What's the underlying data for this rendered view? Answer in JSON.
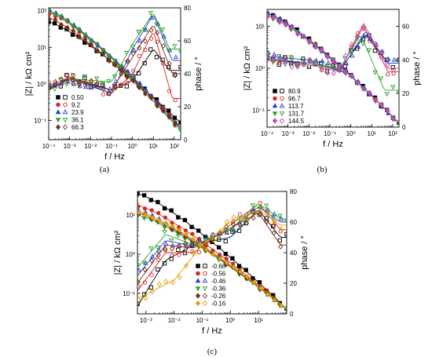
{
  "chart_data": [
    {
      "type": "scatter",
      "caption": "(a)",
      "xlabel": "f / Hz",
      "ylabel_left": "|Z| / kΩ cm²",
      "ylabel_right": "phase / °",
      "x_scale": "log",
      "y_left_scale": "log",
      "xlim": [
        0.0001,
        200
      ],
      "ylim_left": [
        0.03,
        120
      ],
      "ylim_right": [
        0,
        80
      ],
      "x_ticks": [
        "10⁻⁴",
        "10⁻³",
        "10⁻²",
        "10⁻¹",
        "10⁰",
        "10¹",
        "10²"
      ],
      "y_left_ticks": [
        "10⁻¹",
        "10⁰",
        "10¹",
        "10²"
      ],
      "y_right_ticks": [
        "0",
        "20",
        "40",
        "60",
        "80"
      ],
      "legend_position": "lower-left",
      "legend": [
        {
          "label": "0.50",
          "color": "#000000",
          "marker": "square"
        },
        {
          "label": "9.2",
          "color": "#d62728",
          "marker": "circle"
        },
        {
          "label": "23.9",
          "color": "#1f3fd6",
          "marker": "triangle-up"
        },
        {
          "label": "36.1",
          "color": "#2ca02c",
          "marker": "triangle-down"
        },
        {
          "label": "66.3",
          "color": "#7b2d12",
          "marker": "diamond"
        }
      ],
      "series": [
        {
          "label": "0.50",
          "logZ": [
            [
              0.0001,
              1.7
            ],
            [
              100,
              -0.9
            ]
          ],
          "phase": [
            [
              0.0001,
              30
            ],
            [
              0.001,
              38
            ],
            [
              0.1,
              30
            ],
            [
              1,
              36
            ],
            [
              10,
              55
            ],
            [
              60,
              42
            ]
          ]
        },
        {
          "label": "9.2",
          "logZ": [
            [
              0.0001,
              1.95
            ],
            [
              100,
              -1.0
            ]
          ],
          "phase": [
            [
              0.0001,
              32
            ],
            [
              0.001,
              38
            ],
            [
              0.1,
              28
            ],
            [
              1,
              40
            ],
            [
              10,
              66
            ],
            [
              80,
              25
            ]
          ]
        },
        {
          "label": "23.9",
          "logZ": [
            [
              0.0001,
              2.0
            ],
            [
              100,
              -1.0
            ]
          ],
          "phase": [
            [
              0.0001,
              30
            ],
            [
              0.001,
              37
            ],
            [
              0.1,
              28
            ],
            [
              1,
              55
            ],
            [
              10,
              76
            ],
            [
              80,
              48
            ]
          ]
        },
        {
          "label": "36.1",
          "logZ": [
            [
              0.0001,
              2.0
            ],
            [
              100,
              -1.1
            ]
          ],
          "phase": [
            [
              0.0001,
              31
            ],
            [
              0.001,
              37
            ],
            [
              0.1,
              35
            ],
            [
              1,
              58
            ],
            [
              10,
              77
            ],
            [
              60,
              55
            ]
          ]
        },
        {
          "label": "66.3",
          "logZ": [
            [
              0.0001,
              1.8
            ],
            [
              100,
              -1.05
            ]
          ],
          "phase": [
            [
              0.0001,
              31
            ],
            [
              0.001,
              37
            ],
            [
              0.1,
              30
            ],
            [
              1,
              50
            ],
            [
              10,
              70
            ],
            [
              80,
              40
            ]
          ]
        }
      ]
    },
    {
      "type": "scatter",
      "caption": "(b)",
      "xlabel": "f / Hz",
      "ylabel_left": "|Z| / kΩ cm²",
      "ylabel_right": "phase / °",
      "x_scale": "log",
      "y_left_scale": "log",
      "xlim": [
        0.0001,
        200
      ],
      "ylim_left": [
        0.04,
        25
      ],
      "ylim_right": [
        0,
        70
      ],
      "x_ticks": [
        "10⁻⁴",
        "10⁻³",
        "10⁻²",
        "10⁻¹",
        "10⁰",
        "10¹",
        "10²"
      ],
      "y_left_ticks": [
        "10⁻¹",
        "10⁰",
        "10¹"
      ],
      "y_right_ticks": [
        "0",
        "20",
        "40",
        "60"
      ],
      "legend_position": "lower-left",
      "legend": [
        {
          "label": "80.9",
          "color": "#000000",
          "marker": "square"
        },
        {
          "label": "96.7",
          "color": "#d62728",
          "marker": "circle"
        },
        {
          "label": "113.7",
          "color": "#1f3fd6",
          "marker": "triangle-up"
        },
        {
          "label": "131.7",
          "color": "#2ca02c",
          "marker": "triangle-down"
        },
        {
          "label": "144.5",
          "color": "#c04ab0",
          "marker": "diamond"
        }
      ],
      "series": [
        {
          "label": "80.9",
          "logZ": [
            [
              0.0001,
              1.3
            ],
            [
              100,
              -1.15
            ]
          ],
          "phase": [
            [
              0.0001,
              40
            ],
            [
              0.01,
              38
            ],
            [
              0.3,
              34
            ],
            [
              5,
              55
            ],
            [
              60,
              38
            ]
          ]
        },
        {
          "label": "96.7",
          "logZ": [
            [
              0.0001,
              1.3
            ],
            [
              100,
              -1.15
            ]
          ],
          "phase": [
            [
              0.0001,
              41
            ],
            [
              0.01,
              38
            ],
            [
              0.3,
              34
            ],
            [
              4,
              60
            ],
            [
              60,
              33
            ]
          ]
        },
        {
          "label": "113.7",
          "logZ": [
            [
              0.0001,
              1.3
            ],
            [
              100,
              -1.15
            ]
          ],
          "phase": [
            [
              0.0001,
              42
            ],
            [
              0.01,
              40
            ],
            [
              0.3,
              33
            ],
            [
              5,
              57
            ],
            [
              60,
              38
            ]
          ]
        },
        {
          "label": "131.7",
          "logZ": [
            [
              0.0001,
              1.25
            ],
            [
              100,
              -1.15
            ]
          ],
          "phase": [
            [
              0.0001,
              41
            ],
            [
              0.01,
              38
            ],
            [
              0.3,
              35
            ],
            [
              3,
              55
            ],
            [
              40,
              22
            ]
          ]
        },
        {
          "label": "144.5",
          "logZ": [
            [
              0.0001,
              1.25
            ],
            [
              100,
              -1.15
            ]
          ],
          "phase": [
            [
              0.0001,
              40
            ],
            [
              0.01,
              37
            ],
            [
              0.3,
              33
            ],
            [
              4,
              62
            ],
            [
              60,
              35
            ]
          ]
        }
      ]
    },
    {
      "type": "scatter",
      "caption": "(c)",
      "xlabel": "f / Hz",
      "ylabel_left": "|Z| / kΩ cm²",
      "ylabel_right": "phase / °",
      "x_scale": "log",
      "y_left_scale": "log",
      "xlim": [
        0.0005,
        100
      ],
      "ylim_left": [
        0.03,
        40
      ],
      "ylim_right": [
        0,
        80
      ],
      "x_ticks": [
        "10⁻³",
        "10⁻²",
        "10⁻¹",
        "10⁰",
        "10¹"
      ],
      "y_left_ticks": [
        "10⁻¹",
        "10⁰",
        "10¹"
      ],
      "y_right_ticks": [
        "0",
        "20",
        "40",
        "60",
        "80"
      ],
      "legend_position": "lower-center",
      "legend": [
        {
          "label": "-0.66",
          "color": "#000000",
          "marker": "square"
        },
        {
          "label": "-0.56",
          "color": "#d62728",
          "marker": "circle"
        },
        {
          "label": "-0.46",
          "color": "#1f3fd6",
          "marker": "triangle-up"
        },
        {
          "label": "-0.36",
          "color": "#2ca02c",
          "marker": "triangle-down"
        },
        {
          "label": "-0.26",
          "color": "#7b2d12",
          "marker": "diamond"
        },
        {
          "label": "-0.16",
          "color": "#e0a000",
          "marker": "diamond"
        }
      ],
      "series": [
        {
          "label": "-0.66",
          "logZ": [
            [
              0.0005,
              1.55
            ],
            [
              100,
              -1.4
            ]
          ],
          "phase": [
            [
              0.0005,
              5
            ],
            [
              0.005,
              35
            ],
            [
              0.05,
              45
            ],
            [
              1,
              50
            ],
            [
              10,
              68
            ],
            [
              60,
              50
            ]
          ]
        },
        {
          "label": "-0.56",
          "logZ": [
            [
              0.0005,
              1.25
            ],
            [
              100,
              -1.4
            ]
          ],
          "phase": [
            [
              0.0005,
              15
            ],
            [
              0.005,
              40
            ],
            [
              0.05,
              40
            ],
            [
              1,
              58
            ],
            [
              10,
              72
            ],
            [
              60,
              55
            ]
          ]
        },
        {
          "label": "-0.46",
          "logZ": [
            [
              0.0005,
              1.1
            ],
            [
              100,
              -1.4
            ]
          ],
          "phase": [
            [
              0.0005,
              25
            ],
            [
              0.005,
              48
            ],
            [
              0.05,
              44
            ],
            [
              1,
              55
            ],
            [
              10,
              70
            ],
            [
              60,
              60
            ]
          ]
        },
        {
          "label": "-0.36",
          "logZ": [
            [
              0.0005,
              1.0
            ],
            [
              100,
              -1.4
            ]
          ],
          "phase": [
            [
              0.0005,
              30
            ],
            [
              0.005,
              52
            ],
            [
              0.05,
              45
            ],
            [
              1,
              55
            ],
            [
              10,
              72
            ],
            [
              60,
              62
            ]
          ]
        },
        {
          "label": "-0.26",
          "logZ": [
            [
              0.0005,
              1.05
            ],
            [
              100,
              -1.4
            ]
          ],
          "phase": [
            [
              0.0005,
              20
            ],
            [
              0.005,
              45
            ],
            [
              0.05,
              43
            ],
            [
              1,
              56
            ],
            [
              10,
              66
            ],
            [
              60,
              45
            ]
          ]
        },
        {
          "label": "-0.16",
          "logZ": [
            [
              0.0005,
              1.1
            ],
            [
              100,
              -1.4
            ]
          ],
          "phase": [
            [
              0.0005,
              10
            ],
            [
              0.01,
              22
            ],
            [
              0.1,
              45
            ],
            [
              1,
              60
            ],
            [
              10,
              68
            ],
            [
              60,
              58
            ]
          ]
        }
      ]
    }
  ]
}
